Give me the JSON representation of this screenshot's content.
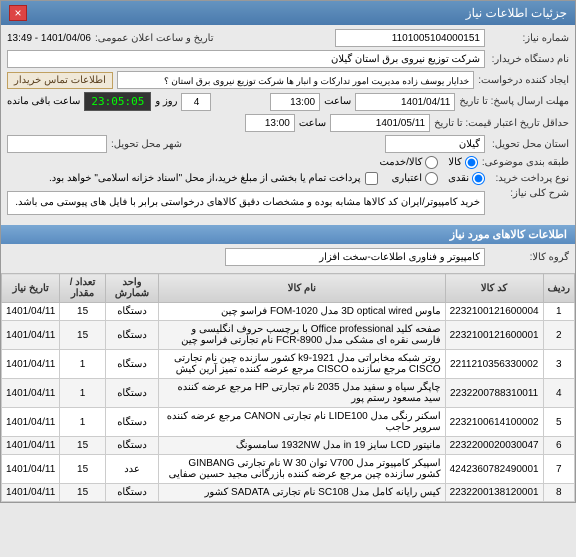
{
  "window": {
    "title": "جزئیات اطلاعات نیاز"
  },
  "form": {
    "req_no_label": "شماره نیاز:",
    "req_no": "1101005104000151",
    "announce_label": "تاریخ و ساعت اعلان عمومی:",
    "announce": "1401/04/06 - 13:49",
    "buyer_label": "نام دستگاه خریدار:",
    "buyer": "شرکت توزیع نیروی برق استان گیلان",
    "creator_label": "ایجاد کننده درخواست:",
    "creator": "خدایار یوسف زاده مدیریت امور تدارکات و انبار ها شرکت توزیع نیروی برق استان ؟",
    "contact_btn": "اطلاعات تماس خریدار",
    "deadline_label": "مهلت ارسال پاسخ: تا تاریخ",
    "deadline_date": "1401/04/11",
    "time_label": "ساعت",
    "deadline_time": "13:00",
    "days": "4",
    "days_label": "روز و",
    "countdown": "23:05:05",
    "remain_label": "ساعت باقی مانده",
    "validity_label": "حداقل تاریخ اعتبار قیمت: تا تاریخ",
    "validity_date": "1401/05/11",
    "validity_time": "13:00",
    "delivery_label": "استان محل تحویل:",
    "delivery": "گیلان",
    "city_label": "شهر محل تحویل:",
    "subject_type_label": "طبقه بندی موضوعی:",
    "opt_goods": "کالا",
    "opt_service": "کالا/خدمت",
    "prepay_label": "نوع پرداخت خرید:",
    "opt_cash": "نقدی",
    "opt_credit": "اعتباری",
    "prepay_note": "پرداخت تمام یا بخشی از مبلغ خرید،از محل \"اسناد خزانه اسلامی\" خواهد بود.",
    "summary_label": "شرح کلی نیاز:",
    "summary": "خرید کامپیوتر/ایران کد کالاها مشابه بوده و مشخصات دقیق کالاهای درخواستی برابر با فایل های پیوستی می باشد.",
    "items_header": "اطلاعات کالاهای مورد نیاز",
    "group_label": "گروه کالا:",
    "group": "کامپیوتر و فناوری اطلاعات-سخت افزار"
  },
  "table": {
    "cols": [
      "ردیف",
      "کد کالا",
      "نام کالا",
      "واحد شمارش",
      "تعداد / مقدار",
      "تاریخ نیاز"
    ],
    "rows": [
      [
        "1",
        "2232100121600004",
        "ماوس 3D optical wired مدل FOM-1020 فراسو چین",
        "دستگاه",
        "15",
        "1401/04/11"
      ],
      [
        "2",
        "2232100121600001",
        "صفحه کلید Office professional با برچسب حروف انگلیسی و فارسی نقره ای مشکی مدل FCR-8900 نام تجارتی فراسو چین",
        "دستگاه",
        "15",
        "1401/04/11"
      ],
      [
        "3",
        "2211210356330002",
        "روتر شبکه مخابراتی مدل k9-1921 کشور سازنده چین نام تجارتی CISCO مرجع سازنده CISCO مرجع عرضه کننده تمیز آرین کیش",
        "دستگاه",
        "1",
        "1401/04/11"
      ],
      [
        "4",
        "2232200788310011",
        "چاپگر سیاه و سفید مدل 2035 نام تجارتی HP مرجع عرضه کننده سید مسعود رستم پور",
        "دستگاه",
        "1",
        "1401/04/11"
      ],
      [
        "5",
        "2232100614100002",
        "اسکنر رنگی مدل LIDE100 نام تجارتی CANON مرجع عرضه کننده سرویر حاجب",
        "دستگاه",
        "1",
        "1401/04/11"
      ],
      [
        "6",
        "2232200020030047",
        "مانیتور LCD سایز 19 in مدل 1932NW سامسونگ",
        "دستگاه",
        "15",
        "1401/04/11"
      ],
      [
        "7",
        "4242360782490001",
        "اسپیکر کامپیوتر مدل V700 توان W 30 نام تجارتی GINBANG کشور سازنده چین مرجع عرضه کننده بازرگانی مجید حسین صفایی",
        "عدد",
        "15",
        "1401/04/11"
      ],
      [
        "8",
        "2232200138120001",
        "کیس رایانه کامل مدل SC108 نام تجارتی SADATA کشور",
        "دستگاه",
        "15",
        "1401/04/11"
      ]
    ]
  }
}
